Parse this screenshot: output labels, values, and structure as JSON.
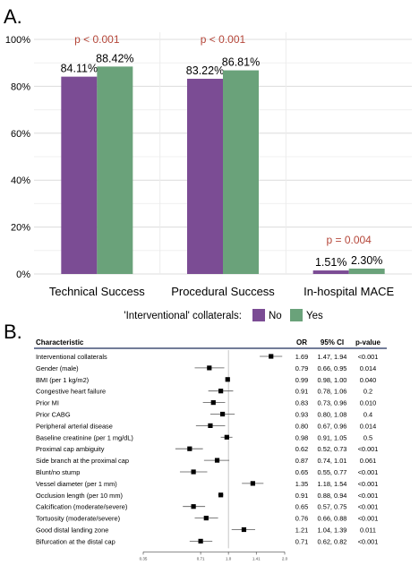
{
  "chart_data": [
    {
      "type": "bar",
      "panel_label": "A.",
      "categories": [
        "Technical Success",
        "Procedural Success",
        "In-hospital MACE"
      ],
      "series": [
        {
          "name": "No",
          "color": "#7b4c94",
          "values": [
            84.11,
            83.22,
            1.51
          ],
          "labels": [
            "84.11%",
            "83.22%",
            "1.51%"
          ]
        },
        {
          "name": "Yes",
          "color": "#6aa27a",
          "values": [
            88.42,
            86.81,
            2.3
          ],
          "labels": [
            "88.42%",
            "86.81%",
            "2.30%"
          ]
        }
      ],
      "annotations": [
        "p < 0.001",
        "p < 0.001",
        "p = 0.004"
      ],
      "annotation_color": "#b5473a",
      "y_ticks": [
        "0%",
        "20%",
        "40%",
        "60%",
        "80%",
        "100%"
      ],
      "ylim": [
        0,
        100
      ],
      "grid": true,
      "legend_title": "'Interventional' collaterals:",
      "legend_position": "bottom"
    },
    {
      "type": "forest",
      "panel_label": "B.",
      "headers": {
        "characteristic": "Characteristic",
        "or": "OR",
        "ci": "95% CI",
        "p": "p-value"
      },
      "rows": [
        {
          "label": "Interventional collaterals",
          "or": 1.69,
          "or_text": "1.69",
          "ci": "1.47, 1.94",
          "lo": 1.47,
          "hi": 1.94,
          "p": "<0.001"
        },
        {
          "label": "Gender (male)",
          "or": 0.79,
          "or_text": "0.79",
          "ci": "0.66, 0.95",
          "lo": 0.66,
          "hi": 0.95,
          "p": "0.014"
        },
        {
          "label": "BMI (per 1 kg/m2)",
          "or": 0.99,
          "or_text": "0.99",
          "ci": "0.98, 1.00",
          "lo": 0.98,
          "hi": 1.0,
          "p": "0.040"
        },
        {
          "label": "Congestive heart failure",
          "or": 0.91,
          "or_text": "0.91",
          "ci": "0.78, 1.06",
          "lo": 0.78,
          "hi": 1.06,
          "p": "0.2"
        },
        {
          "label": "Prior MI",
          "or": 0.83,
          "or_text": "0.83",
          "ci": "0.73, 0.96",
          "lo": 0.73,
          "hi": 0.96,
          "p": "0.010"
        },
        {
          "label": "Prior CABG",
          "or": 0.93,
          "or_text": "0.93",
          "ci": "0.80, 1.08",
          "lo": 0.8,
          "hi": 1.08,
          "p": "0.4"
        },
        {
          "label": "Peripheral arterial disease",
          "or": 0.8,
          "or_text": "0.80",
          "ci": "0.67, 0.96",
          "lo": 0.67,
          "hi": 0.96,
          "p": "0.014"
        },
        {
          "label": "Baseline creatinine (per 1 mg/dL)",
          "or": 0.98,
          "or_text": "0.98",
          "ci": "0.91, 1.05",
          "lo": 0.91,
          "hi": 1.05,
          "p": "0.5"
        },
        {
          "label": "Proximal cap ambiguity",
          "or": 0.62,
          "or_text": "0.62",
          "ci": "0.52, 0.73",
          "lo": 0.52,
          "hi": 0.73,
          "p": "<0.001"
        },
        {
          "label": "Side branch at the proximal cap",
          "or": 0.87,
          "or_text": "0.87",
          "ci": "0.74, 1.01",
          "lo": 0.74,
          "hi": 1.01,
          "p": "0.061"
        },
        {
          "label": "Blunt/no stump",
          "or": 0.65,
          "or_text": "0.65",
          "ci": "0.55, 0.77",
          "lo": 0.55,
          "hi": 0.77,
          "p": "<0.001"
        },
        {
          "label": "Vessel diameter (per 1 mm)",
          "or": 1.35,
          "or_text": "1.35",
          "ci": "1.18, 1.54",
          "lo": 1.18,
          "hi": 1.54,
          "p": "<0.001"
        },
        {
          "label": "Occlusion length (per 10 mm)",
          "or": 0.91,
          "or_text": "0.91",
          "ci": "0.88, 0.94",
          "lo": 0.88,
          "hi": 0.94,
          "p": "<0.001"
        },
        {
          "label": "Calcification (moderate/severe)",
          "or": 0.65,
          "or_text": "0.65",
          "ci": "0.57, 0.75",
          "lo": 0.57,
          "hi": 0.75,
          "p": "<0.001"
        },
        {
          "label": "Tortuosity (moderate/severe)",
          "or": 0.76,
          "or_text": "0.76",
          "ci": "0.66, 0.88",
          "lo": 0.66,
          "hi": 0.88,
          "p": "<0.001"
        },
        {
          "label": "Good distal landing zone",
          "or": 1.21,
          "or_text": "1.21",
          "ci": "1.04, 1.39",
          "lo": 1.04,
          "hi": 1.39,
          "p": "0.011"
        },
        {
          "label": "Bifurcation at the distal cap",
          "or": 0.71,
          "or_text": "0.71",
          "ci": "0.62, 0.82",
          "lo": 0.62,
          "hi": 0.82,
          "p": "<0.001"
        }
      ],
      "x_scale": "log",
      "x_ticks": [
        0.35,
        0.71,
        1.0,
        1.41,
        2.0
      ],
      "x_tick_labels": [
        "0.35",
        "0.71",
        "1.0",
        "1.41",
        "2.0"
      ],
      "xlim": [
        0.35,
        2.0
      ],
      "reference_line": 1.0
    }
  ]
}
